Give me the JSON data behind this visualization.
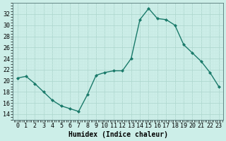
{
  "x": [
    0,
    1,
    2,
    3,
    4,
    5,
    6,
    7,
    8,
    9,
    10,
    11,
    12,
    13,
    14,
    15,
    16,
    17,
    18,
    19,
    20,
    21,
    22,
    23
  ],
  "y": [
    20.5,
    20.8,
    19.5,
    18.0,
    16.5,
    15.5,
    15.0,
    14.5,
    17.5,
    21.0,
    21.5,
    21.8,
    21.8,
    24.0,
    31.0,
    33.0,
    31.2,
    31.0,
    30.0,
    26.5,
    25.0,
    23.5,
    21.5,
    19.0
  ],
  "line_color": "#1a7a6a",
  "marker": "D",
  "marker_size": 2,
  "bg_color": "#cceee8",
  "grid_major_color": "#b0d8d0",
  "grid_minor_color": "#c8eae4",
  "xlabel": "Humidex (Indice chaleur)",
  "ylim": [
    13,
    34
  ],
  "yticks": [
    14,
    16,
    18,
    20,
    22,
    24,
    26,
    28,
    30,
    32
  ],
  "xticks": [
    0,
    1,
    2,
    3,
    4,
    5,
    6,
    7,
    8,
    9,
    10,
    11,
    12,
    13,
    14,
    15,
    16,
    17,
    18,
    19,
    20,
    21,
    22,
    23
  ],
  "xlabel_fontsize": 7,
  "tick_fontsize": 6,
  "linewidth": 1.0
}
